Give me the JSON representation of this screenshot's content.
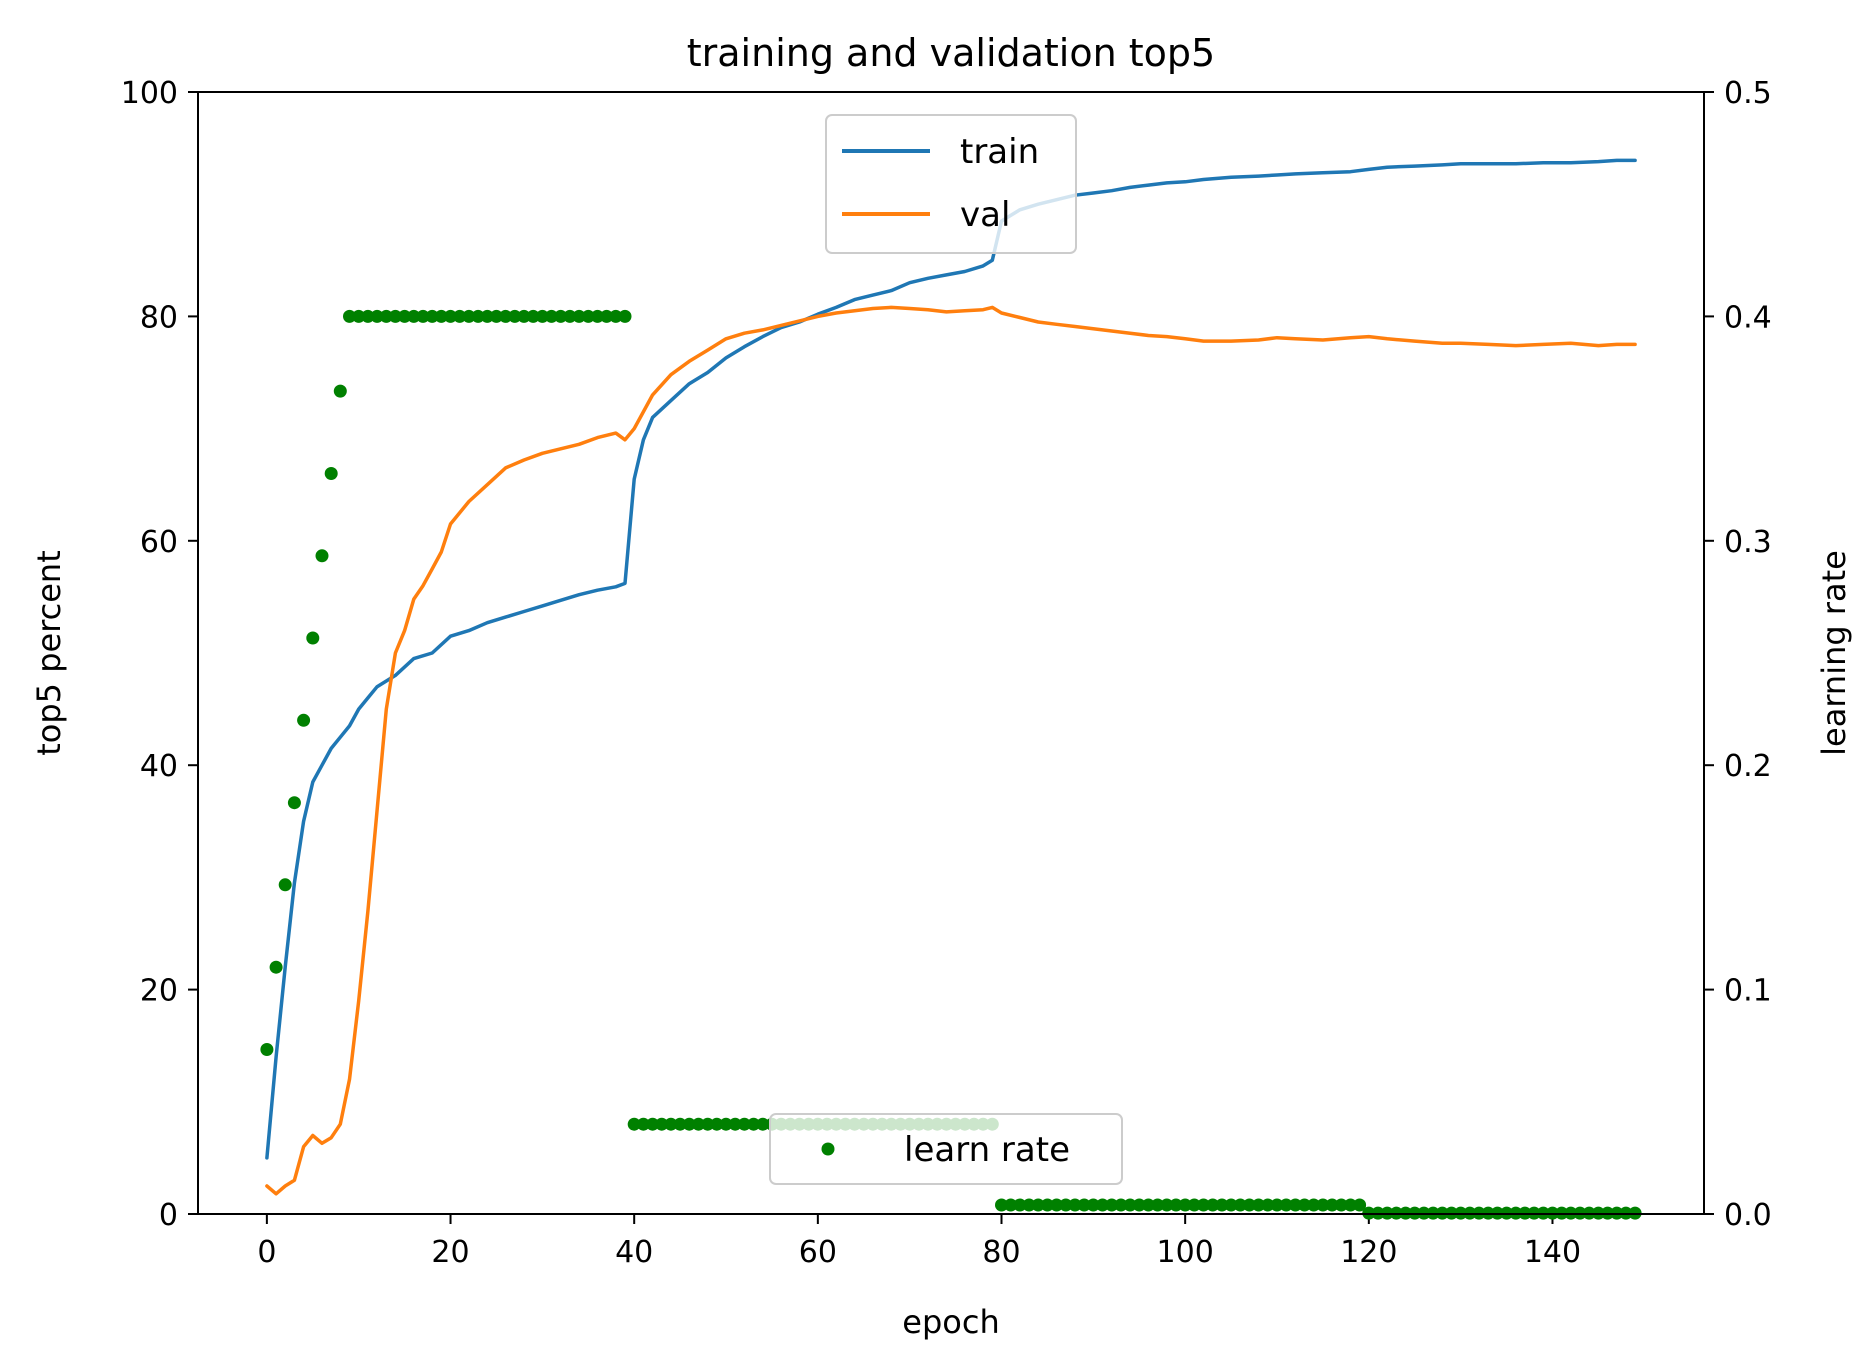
{
  "chart_data": {
    "type": "line",
    "title": "training and validation top5",
    "xlabel": "epoch",
    "ylabel": "top5 percent",
    "y2label": "learning rate",
    "xlim": [
      -7.5,
      156.5
    ],
    "ylim": [
      0,
      100
    ],
    "y2lim": [
      0,
      0.5
    ],
    "x_ticks": [
      "0",
      "20",
      "40",
      "60",
      "80",
      "100",
      "120",
      "140"
    ],
    "y_ticks": [
      "0",
      "20",
      "40",
      "60",
      "80",
      "100"
    ],
    "y2_ticks": [
      "0.0",
      "0.1",
      "0.2",
      "0.3",
      "0.4",
      "0.5"
    ],
    "grid": false,
    "series": [
      {
        "name": "train",
        "axis": "left",
        "style": "line",
        "color": "#1f77b4",
        "points": [
          [
            0,
            5
          ],
          [
            1,
            14
          ],
          [
            2,
            22
          ],
          [
            3,
            29.5
          ],
          [
            4,
            35
          ],
          [
            5,
            38.5
          ],
          [
            6,
            40
          ],
          [
            7,
            41.5
          ],
          [
            8,
            42.5
          ],
          [
            9,
            43.5
          ],
          [
            10,
            45
          ],
          [
            11,
            46
          ],
          [
            12,
            47
          ],
          [
            14,
            48
          ],
          [
            16,
            49.5
          ],
          [
            18,
            50
          ],
          [
            20,
            51.5
          ],
          [
            22,
            52
          ],
          [
            24,
            52.7
          ],
          [
            26,
            53.2
          ],
          [
            28,
            53.7
          ],
          [
            30,
            54.2
          ],
          [
            32,
            54.7
          ],
          [
            34,
            55.2
          ],
          [
            36,
            55.6
          ],
          [
            38,
            55.9
          ],
          [
            39,
            56.2
          ],
          [
            40,
            65.5
          ],
          [
            41,
            69
          ],
          [
            42,
            71
          ],
          [
            44,
            72.5
          ],
          [
            46,
            74
          ],
          [
            48,
            75
          ],
          [
            50,
            76.3
          ],
          [
            52,
            77.3
          ],
          [
            54,
            78.2
          ],
          [
            56,
            79
          ],
          [
            58,
            79.5
          ],
          [
            60,
            80.2
          ],
          [
            62,
            80.8
          ],
          [
            64,
            81.5
          ],
          [
            66,
            81.9
          ],
          [
            68,
            82.3
          ],
          [
            70,
            83
          ],
          [
            72,
            83.4
          ],
          [
            74,
            83.7
          ],
          [
            76,
            84
          ],
          [
            78,
            84.5
          ],
          [
            79,
            85
          ],
          [
            80,
            88.5
          ],
          [
            82,
            89.5
          ],
          [
            84,
            90
          ],
          [
            86,
            90.4
          ],
          [
            88,
            90.8
          ],
          [
            90,
            91
          ],
          [
            92,
            91.2
          ],
          [
            94,
            91.5
          ],
          [
            96,
            91.7
          ],
          [
            98,
            91.9
          ],
          [
            100,
            92
          ],
          [
            102,
            92.2
          ],
          [
            105,
            92.4
          ],
          [
            108,
            92.5
          ],
          [
            110,
            92.6
          ],
          [
            112,
            92.7
          ],
          [
            115,
            92.8
          ],
          [
            118,
            92.9
          ],
          [
            120,
            93.1
          ],
          [
            122,
            93.3
          ],
          [
            125,
            93.4
          ],
          [
            128,
            93.5
          ],
          [
            130,
            93.6
          ],
          [
            133,
            93.6
          ],
          [
            136,
            93.6
          ],
          [
            139,
            93.7
          ],
          [
            142,
            93.7
          ],
          [
            145,
            93.8
          ],
          [
            147,
            93.9
          ],
          [
            149,
            93.9
          ]
        ]
      },
      {
        "name": "val",
        "axis": "left",
        "style": "line",
        "color": "#ff7f0e",
        "points": [
          [
            0,
            2.5
          ],
          [
            1,
            1.8
          ],
          [
            2,
            2.5
          ],
          [
            3,
            3
          ],
          [
            4,
            6
          ],
          [
            5,
            7
          ],
          [
            6,
            6.3
          ],
          [
            7,
            6.8
          ],
          [
            8,
            8
          ],
          [
            9,
            12
          ],
          [
            10,
            19
          ],
          [
            11,
            27
          ],
          [
            12,
            36
          ],
          [
            13,
            45
          ],
          [
            14,
            50
          ],
          [
            15,
            52
          ],
          [
            16,
            54.8
          ],
          [
            17,
            56
          ],
          [
            18,
            57.5
          ],
          [
            19,
            59
          ],
          [
            20,
            61.5
          ],
          [
            22,
            63.5
          ],
          [
            24,
            65
          ],
          [
            26,
            66.5
          ],
          [
            28,
            67.2
          ],
          [
            30,
            67.8
          ],
          [
            32,
            68.2
          ],
          [
            34,
            68.6
          ],
          [
            36,
            69.2
          ],
          [
            38,
            69.6
          ],
          [
            39,
            69
          ],
          [
            40,
            70
          ],
          [
            42,
            73
          ],
          [
            44,
            74.8
          ],
          [
            46,
            76
          ],
          [
            48,
            77
          ],
          [
            50,
            78
          ],
          [
            52,
            78.5
          ],
          [
            54,
            78.8
          ],
          [
            56,
            79.2
          ],
          [
            58,
            79.6
          ],
          [
            60,
            80
          ],
          [
            62,
            80.3
          ],
          [
            64,
            80.5
          ],
          [
            66,
            80.7
          ],
          [
            68,
            80.8
          ],
          [
            70,
            80.7
          ],
          [
            72,
            80.6
          ],
          [
            74,
            80.4
          ],
          [
            76,
            80.5
          ],
          [
            78,
            80.6
          ],
          [
            79,
            80.8
          ],
          [
            80,
            80.3
          ],
          [
            82,
            79.9
          ],
          [
            84,
            79.5
          ],
          [
            86,
            79.3
          ],
          [
            88,
            79.1
          ],
          [
            90,
            78.9
          ],
          [
            92,
            78.7
          ],
          [
            94,
            78.5
          ],
          [
            96,
            78.3
          ],
          [
            98,
            78.2
          ],
          [
            100,
            78
          ],
          [
            102,
            77.8
          ],
          [
            105,
            77.8
          ],
          [
            108,
            77.9
          ],
          [
            110,
            78.1
          ],
          [
            112,
            78
          ],
          [
            115,
            77.9
          ],
          [
            118,
            78.1
          ],
          [
            120,
            78.2
          ],
          [
            122,
            78
          ],
          [
            125,
            77.8
          ],
          [
            128,
            77.6
          ],
          [
            130,
            77.6
          ],
          [
            133,
            77.5
          ],
          [
            136,
            77.4
          ],
          [
            139,
            77.5
          ],
          [
            142,
            77.6
          ],
          [
            145,
            77.4
          ],
          [
            147,
            77.5
          ],
          [
            149,
            77.5
          ]
        ]
      },
      {
        "name": "learn rate",
        "axis": "right",
        "style": "markers",
        "color": "#008000",
        "points": [
          [
            0,
            0.0733
          ],
          [
            1,
            0.11
          ],
          [
            2,
            0.1467
          ],
          [
            3,
            0.1833
          ],
          [
            4,
            0.22
          ],
          [
            5,
            0.2567
          ],
          [
            6,
            0.2933
          ],
          [
            7,
            0.33
          ],
          [
            8,
            0.3667
          ],
          [
            9,
            0.4
          ],
          [
            10,
            0.4
          ],
          [
            11,
            0.4
          ],
          [
            12,
            0.4
          ],
          [
            13,
            0.4
          ],
          [
            14,
            0.4
          ],
          [
            15,
            0.4
          ],
          [
            16,
            0.4
          ],
          [
            17,
            0.4
          ],
          [
            18,
            0.4
          ],
          [
            19,
            0.4
          ],
          [
            20,
            0.4
          ],
          [
            21,
            0.4
          ],
          [
            22,
            0.4
          ],
          [
            23,
            0.4
          ],
          [
            24,
            0.4
          ],
          [
            25,
            0.4
          ],
          [
            26,
            0.4
          ],
          [
            27,
            0.4
          ],
          [
            28,
            0.4
          ],
          [
            29,
            0.4
          ],
          [
            30,
            0.4
          ],
          [
            31,
            0.4
          ],
          [
            32,
            0.4
          ],
          [
            33,
            0.4
          ],
          [
            34,
            0.4
          ],
          [
            35,
            0.4
          ],
          [
            36,
            0.4
          ],
          [
            37,
            0.4
          ],
          [
            38,
            0.4
          ],
          [
            39,
            0.4
          ],
          [
            40,
            0.04
          ],
          [
            41,
            0.04
          ],
          [
            42,
            0.04
          ],
          [
            43,
            0.04
          ],
          [
            44,
            0.04
          ],
          [
            45,
            0.04
          ],
          [
            46,
            0.04
          ],
          [
            47,
            0.04
          ],
          [
            48,
            0.04
          ],
          [
            49,
            0.04
          ],
          [
            50,
            0.04
          ],
          [
            51,
            0.04
          ],
          [
            52,
            0.04
          ],
          [
            53,
            0.04
          ],
          [
            54,
            0.04
          ],
          [
            55,
            0.04
          ],
          [
            56,
            0.04
          ],
          [
            57,
            0.04
          ],
          [
            58,
            0.04
          ],
          [
            59,
            0.04
          ],
          [
            60,
            0.04
          ],
          [
            61,
            0.04
          ],
          [
            62,
            0.04
          ],
          [
            63,
            0.04
          ],
          [
            64,
            0.04
          ],
          [
            65,
            0.04
          ],
          [
            66,
            0.04
          ],
          [
            67,
            0.04
          ],
          [
            68,
            0.04
          ],
          [
            69,
            0.04
          ],
          [
            70,
            0.04
          ],
          [
            71,
            0.04
          ],
          [
            72,
            0.04
          ],
          [
            73,
            0.04
          ],
          [
            74,
            0.04
          ],
          [
            75,
            0.04
          ],
          [
            76,
            0.04
          ],
          [
            77,
            0.04
          ],
          [
            78,
            0.04
          ],
          [
            79,
            0.04
          ],
          [
            80,
            0.004
          ],
          [
            81,
            0.004
          ],
          [
            82,
            0.004
          ],
          [
            83,
            0.004
          ],
          [
            84,
            0.004
          ],
          [
            85,
            0.004
          ],
          [
            86,
            0.004
          ],
          [
            87,
            0.004
          ],
          [
            88,
            0.004
          ],
          [
            89,
            0.004
          ],
          [
            90,
            0.004
          ],
          [
            91,
            0.004
          ],
          [
            92,
            0.004
          ],
          [
            93,
            0.004
          ],
          [
            94,
            0.004
          ],
          [
            95,
            0.004
          ],
          [
            96,
            0.004
          ],
          [
            97,
            0.004
          ],
          [
            98,
            0.004
          ],
          [
            99,
            0.004
          ],
          [
            100,
            0.004
          ],
          [
            101,
            0.004
          ],
          [
            102,
            0.004
          ],
          [
            103,
            0.004
          ],
          [
            104,
            0.004
          ],
          [
            105,
            0.004
          ],
          [
            106,
            0.004
          ],
          [
            107,
            0.004
          ],
          [
            108,
            0.004
          ],
          [
            109,
            0.004
          ],
          [
            110,
            0.004
          ],
          [
            111,
            0.004
          ],
          [
            112,
            0.004
          ],
          [
            113,
            0.004
          ],
          [
            114,
            0.004
          ],
          [
            115,
            0.004
          ],
          [
            116,
            0.004
          ],
          [
            117,
            0.004
          ],
          [
            118,
            0.004
          ],
          [
            119,
            0.004
          ],
          [
            120,
            0.0004
          ],
          [
            121,
            0.0004
          ],
          [
            122,
            0.0004
          ],
          [
            123,
            0.0004
          ],
          [
            124,
            0.0004
          ],
          [
            125,
            0.0004
          ],
          [
            126,
            0.0004
          ],
          [
            127,
            0.0004
          ],
          [
            128,
            0.0004
          ],
          [
            129,
            0.0004
          ],
          [
            130,
            0.0004
          ],
          [
            131,
            0.0004
          ],
          [
            132,
            0.0004
          ],
          [
            133,
            0.0004
          ],
          [
            134,
            0.0004
          ],
          [
            135,
            0.0004
          ],
          [
            136,
            0.0004
          ],
          [
            137,
            0.0004
          ],
          [
            138,
            0.0004
          ],
          [
            139,
            0.0004
          ],
          [
            140,
            0.0004
          ],
          [
            141,
            0.0004
          ],
          [
            142,
            0.0004
          ],
          [
            143,
            0.0004
          ],
          [
            144,
            0.0004
          ],
          [
            145,
            0.0004
          ],
          [
            146,
            0.0004
          ],
          [
            147,
            0.0004
          ],
          [
            148,
            0.0004
          ],
          [
            149,
            0.0004
          ]
        ]
      }
    ],
    "legends": [
      {
        "location": "upper center",
        "entries": [
          "train",
          "val"
        ]
      },
      {
        "location": "lower center",
        "entries": [
          "learn rate"
        ]
      }
    ]
  }
}
